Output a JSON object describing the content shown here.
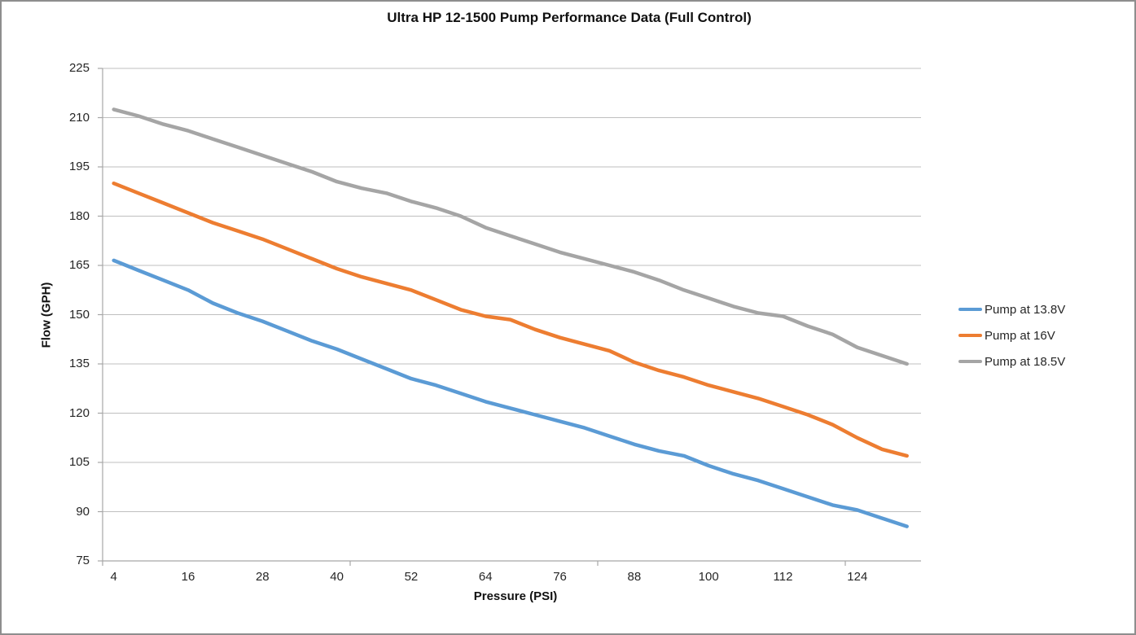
{
  "title": "Ultra HP 12-1500 Pump Performance Data (Full Control)",
  "chart_data": {
    "type": "line",
    "title": "Ultra HP 12-1500 Pump Performance Data (Full Control)",
    "xlabel": "Pressure (PSI)",
    "ylabel": "Flow (GPH)",
    "x": [
      4,
      8,
      12,
      16,
      20,
      24,
      28,
      32,
      36,
      40,
      44,
      48,
      52,
      56,
      60,
      64,
      68,
      72,
      76,
      80,
      84,
      88,
      92,
      96,
      100,
      104,
      108,
      112,
      116,
      120,
      124,
      128,
      132
    ],
    "x_tick_labels": [
      "4",
      "16",
      "28",
      "40",
      "52",
      "64",
      "76",
      "88",
      "100",
      "112",
      "124"
    ],
    "x_tick_values": [
      4,
      16,
      28,
      40,
      52,
      64,
      76,
      88,
      100,
      112,
      124
    ],
    "y_ticks": [
      75,
      90,
      105,
      120,
      135,
      150,
      165,
      180,
      195,
      210,
      225
    ],
    "ylim": [
      75,
      225
    ],
    "xlim": [
      4,
      132
    ],
    "grid": "horizontal",
    "legend_position": "right",
    "gridline_color": "#BFBFBF",
    "axis_color": "#A6A6A6",
    "series": [
      {
        "name": "Pump at 13.8V",
        "color": "#5B9BD5",
        "values": [
          166.5,
          163.5,
          160.5,
          157.5,
          153.5,
          150.5,
          148,
          145,
          142,
          139.5,
          136.5,
          133.5,
          130.5,
          128.5,
          126,
          123.5,
          121.5,
          119.5,
          117.5,
          115.5,
          113,
          110.5,
          108.5,
          107,
          104,
          101.5,
          99.5,
          97,
          94.5,
          92,
          90.5,
          88,
          85.5
        ]
      },
      {
        "name": "Pump at 16V",
        "color": "#ED7D31",
        "values": [
          190,
          187,
          184,
          181,
          178,
          175.5,
          173,
          170,
          167,
          164,
          161.5,
          159.5,
          157.5,
          154.5,
          151.5,
          149.5,
          148.5,
          145.5,
          143,
          141,
          139,
          135.5,
          133,
          131,
          128.5,
          126.5,
          124.5,
          122,
          119.5,
          116.5,
          112.5,
          109,
          107
        ]
      },
      {
        "name": "Pump at 18.5V",
        "color": "#A5A5A5",
        "values": [
          212.5,
          210.5,
          208,
          206,
          203.5,
          201,
          198.5,
          196,
          193.5,
          190.5,
          188.5,
          187,
          184.5,
          182.5,
          180,
          176.5,
          174,
          171.5,
          169,
          167,
          165,
          163,
          160.5,
          157.5,
          155,
          152.5,
          150.5,
          149.5,
          146.5,
          144,
          140,
          137.5,
          135
        ]
      }
    ]
  },
  "legend": {
    "items": [
      {
        "label": "Pump at 13.8V",
        "color": "#5B9BD5"
      },
      {
        "label": "Pump at 16V",
        "color": "#ED7D31"
      },
      {
        "label": "Pump at 18.5V",
        "color": "#A5A5A5"
      }
    ]
  }
}
